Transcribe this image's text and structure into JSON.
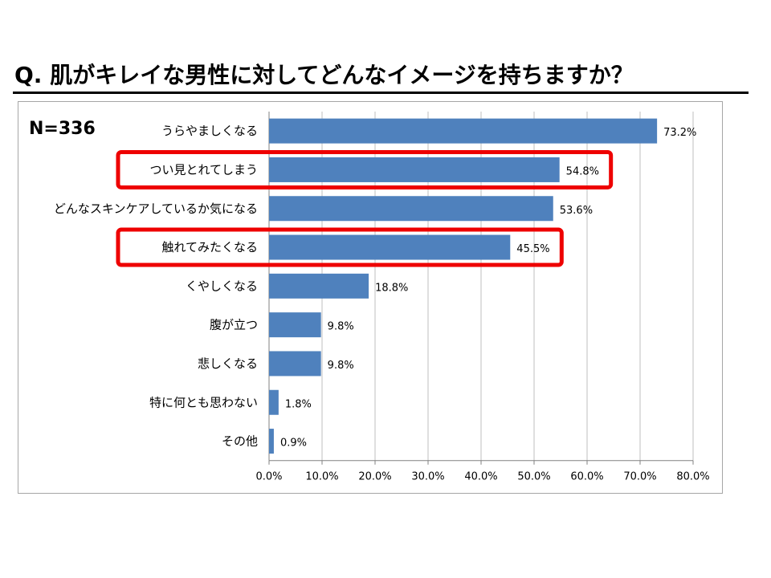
{
  "title": "Q. 肌がキレイな男性に対してどんなイメージを持ちますか？",
  "sample_size": "N=336",
  "colors": {
    "bar": "#4f81bd",
    "highlight": "#ee0000",
    "grid": "#bfbfbf"
  },
  "chart_data": {
    "type": "bar",
    "orientation": "horizontal",
    "categories": [
      "うらやましくなる",
      "つい見とれてしまう",
      "どんなスキンケアしているか気になる",
      "触れてみたくなる",
      "くやしくなる",
      "腹が立つ",
      "悲しくなる",
      "特に何とも思わない",
      "その他"
    ],
    "values": [
      73.2,
      54.8,
      53.6,
      45.5,
      18.8,
      9.8,
      9.8,
      1.8,
      0.9
    ],
    "value_labels": [
      "73.2%",
      "54.8%",
      "53.6%",
      "45.5%",
      "18.8%",
      "9.8%",
      "9.8%",
      "1.8%",
      "0.9%"
    ],
    "highlighted": [
      "つい見とれてしまう",
      "触れてみたくなる"
    ],
    "xlim": [
      0,
      80
    ],
    "xticks": [
      0,
      10,
      20,
      30,
      40,
      50,
      60,
      70,
      80
    ],
    "xtick_labels": [
      "0.0%",
      "10.0%",
      "20.0%",
      "30.0%",
      "40.0%",
      "50.0%",
      "60.0%",
      "70.0%",
      "80.0%"
    ],
    "grid": true,
    "xlabel": "",
    "ylabel": ""
  }
}
